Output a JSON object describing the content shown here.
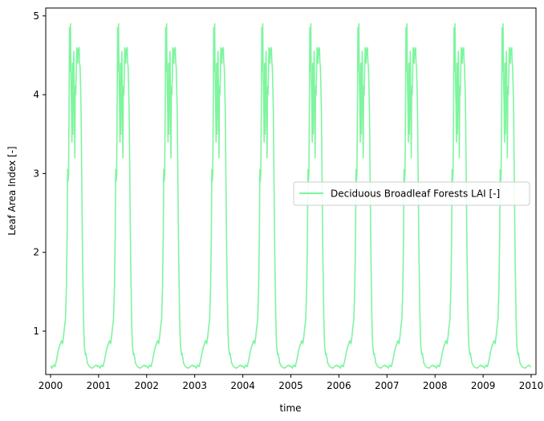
{
  "chart_data": {
    "type": "line",
    "xlabel": "time",
    "ylabel": "Leaf Area Index [-]",
    "xlim": [
      1999.9,
      2010.1
    ],
    "ylim": [
      0.45,
      5.1
    ],
    "xticks": [
      2000,
      2001,
      2002,
      2003,
      2004,
      2005,
      2006,
      2007,
      2008,
      2009,
      2010
    ],
    "xtick_labels": [
      "2000",
      "2001",
      "2002",
      "2003",
      "2004",
      "2005",
      "2006",
      "2007",
      "2008",
      "2009",
      "2010"
    ],
    "yticks": [
      1,
      2,
      3,
      4,
      5
    ],
    "ytick_labels": [
      "1",
      "2",
      "3",
      "4",
      "5"
    ],
    "grid": false,
    "legend_position": "center-right",
    "series": [
      {
        "name": "Deciduous Broadleaf Forests LAI [-]",
        "color": "#7ef59e",
        "annual_profile": {
          "x_offsets": [
            0.0,
            0.03,
            0.06,
            0.09,
            0.12,
            0.15,
            0.18,
            0.21,
            0.23,
            0.25,
            0.27,
            0.29,
            0.31,
            0.33,
            0.345,
            0.355,
            0.365,
            0.375,
            0.385,
            0.395,
            0.405,
            0.415,
            0.425,
            0.435,
            0.445,
            0.455,
            0.465,
            0.475,
            0.485,
            0.495,
            0.505,
            0.515,
            0.525,
            0.535,
            0.545,
            0.555,
            0.565,
            0.575,
            0.585,
            0.595,
            0.605,
            0.615,
            0.625,
            0.635,
            0.645,
            0.655,
            0.665,
            0.675,
            0.685,
            0.695,
            0.705,
            0.715,
            0.725,
            0.735,
            0.745,
            0.755,
            0.765,
            0.78,
            0.8,
            0.83,
            0.87,
            0.91,
            0.95,
            0.98
          ],
          "values": [
            0.56,
            0.53,
            0.57,
            0.55,
            0.62,
            0.72,
            0.8,
            0.85,
            0.88,
            0.84,
            0.93,
            1.05,
            1.15,
            1.55,
            2.2,
            3.05,
            2.9,
            3.0,
            3.8,
            4.85,
            4.3,
            4.9,
            4.2,
            3.9,
            3.4,
            4.4,
            3.5,
            4.1,
            4.55,
            3.9,
            3.2,
            4.1,
            4.0,
            4.3,
            4.6,
            4.55,
            4.4,
            4.58,
            4.5,
            4.6,
            4.4,
            4.35,
            4.1,
            3.8,
            3.2,
            2.6,
            2.0,
            1.6,
            1.2,
            0.95,
            0.8,
            0.75,
            0.7,
            0.72,
            0.68,
            0.65,
            0.6,
            0.58,
            0.56,
            0.54,
            0.53,
            0.55,
            0.57,
            0.55
          ]
        }
      }
    ]
  }
}
